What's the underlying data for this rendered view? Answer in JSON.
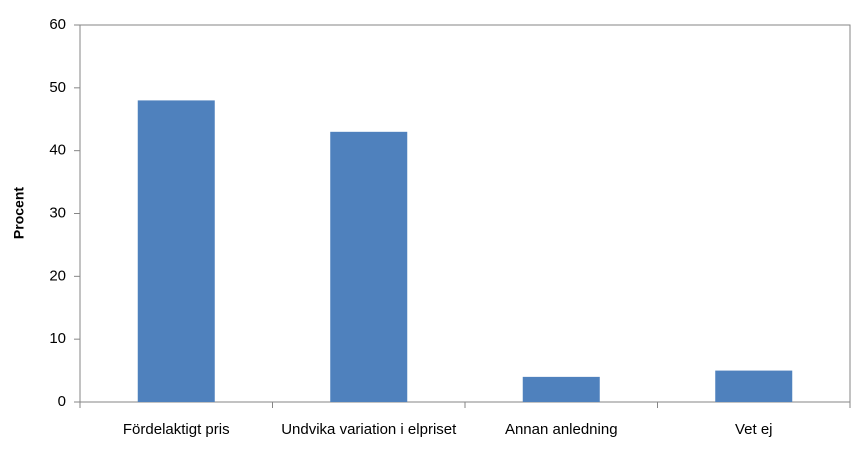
{
  "chart_data": {
    "type": "bar",
    "y_label": "Procent",
    "categories": [
      "Fördelaktigt pris",
      "Undvika variation i elpriset",
      "Annan anledning",
      "Vet ej"
    ],
    "values": [
      48,
      43,
      4,
      5
    ],
    "color": "#4f81bd",
    "ylim": [
      0,
      60
    ],
    "yticks": [
      0,
      10,
      20,
      30,
      40,
      50,
      60
    ],
    "grid": false
  }
}
